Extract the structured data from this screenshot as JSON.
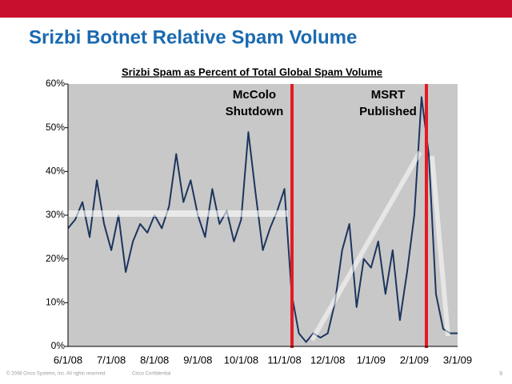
{
  "slide_title": "Srizbi Botnet Relative Spam Volume",
  "footer": {
    "copyright": "© 2008 Cisco Systems, Inc. All rights reserved.",
    "confidential": "Cisco Confidential",
    "page": "9"
  },
  "chart_data": {
    "type": "line",
    "title": "Srizbi Spam as Percent of Total Global Spam Volume",
    "annotations": [
      [
        "McColo",
        "Shutdown"
      ],
      [
        "MSRT",
        "Published"
      ]
    ],
    "categories": [
      "6/1/08",
      null,
      null,
      null,
      null,
      null,
      "7/1/08",
      null,
      null,
      null,
      null,
      null,
      "8/1/08",
      null,
      null,
      null,
      null,
      null,
      "9/1/08",
      null,
      null,
      null,
      null,
      null,
      "10/1/08",
      null,
      null,
      null,
      null,
      null,
      "11/1/08",
      null,
      null,
      null,
      null,
      null,
      "12/1/08",
      null,
      null,
      null,
      null,
      null,
      "1/1/09",
      null,
      null,
      null,
      null,
      null,
      "2/1/09",
      null,
      null,
      null,
      null,
      null,
      "3/1/09"
    ],
    "series": [
      {
        "name": "Srizbi",
        "color": "#1c355e",
        "values": [
          27,
          29,
          33,
          25,
          38,
          28,
          22,
          30,
          17,
          24,
          28,
          26,
          30,
          27,
          32,
          44,
          33,
          38,
          30,
          25,
          36,
          28,
          31,
          24,
          29,
          49,
          35,
          22,
          27,
          31,
          36,
          12,
          3,
          1,
          3,
          2,
          3,
          10,
          22,
          28,
          9,
          20,
          18,
          24,
          12,
          22,
          6,
          17,
          30,
          57,
          44,
          12,
          4,
          3,
          3
        ]
      }
    ],
    "ylim": [
      0,
      60
    ],
    "yticks": [
      {
        "value": 0,
        "label": "0%"
      },
      {
        "value": 10,
        "label": "10%"
      },
      {
        "value": 20,
        "label": "20%"
      },
      {
        "value": 30,
        "label": "30%"
      },
      {
        "value": 40,
        "label": "40%"
      },
      {
        "value": 50,
        "label": "50%"
      },
      {
        "value": 60,
        "label": "60%"
      }
    ]
  }
}
